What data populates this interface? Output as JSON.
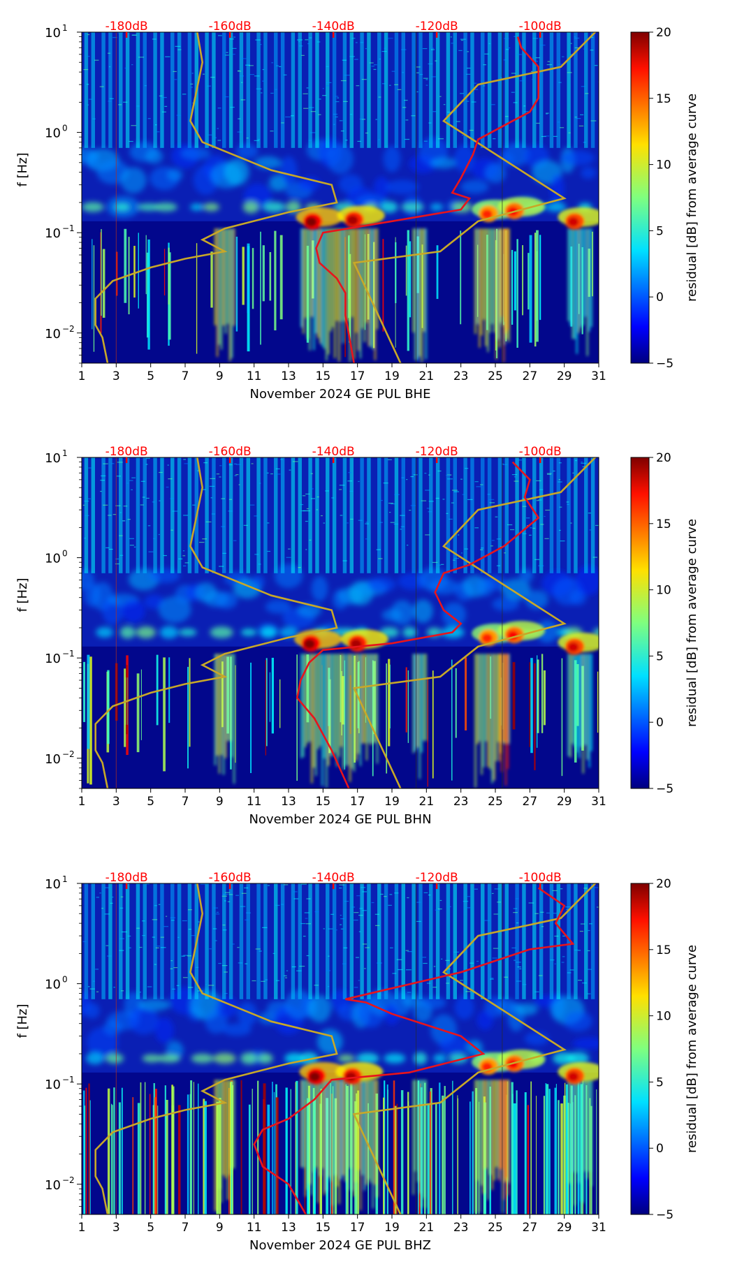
{
  "colors": {
    "red_curve": "#e8141c",
    "gold_curve": "#c8a828",
    "db_label": "#ff0000",
    "background_field": "#0a1fb4"
  },
  "colorbar": {
    "label": "residual [dB] from average curve",
    "min": -5,
    "max": 20,
    "ticks": [
      20,
      15,
      10,
      5,
      0,
      -5
    ],
    "colormap": "jet"
  },
  "chart_data": [
    {
      "type": "heatmap",
      "xlabel": "November 2024 GE PUL  BHE",
      "ylabel": "f [Hz]",
      "x_ticks": [
        "1",
        "3",
        "5",
        "7",
        "9",
        "11",
        "13",
        "15",
        "17",
        "19",
        "21",
        "23",
        "25",
        "27",
        "29",
        "31"
      ],
      "xlim": [
        1,
        31
      ],
      "ylim": [
        0.005,
        10
      ],
      "yscale": "log",
      "y_ticks": [
        {
          "base": "10",
          "exp": "1"
        },
        {
          "base": "10",
          "exp": "0"
        },
        {
          "base": "10",
          "exp": "−1"
        },
        {
          "base": "10",
          "exp": "−2"
        }
      ],
      "db_labels": [
        "-180dB",
        "-160dB",
        "-140dB",
        "-120dB",
        "-100dB"
      ],
      "gold_curve": [
        [
          2.5,
          0.005
        ],
        [
          2.2,
          0.009
        ],
        [
          1.8,
          0.012
        ],
        [
          1.8,
          0.022
        ],
        [
          2.8,
          0.033
        ],
        [
          5,
          0.045
        ],
        [
          7,
          0.055
        ],
        [
          9.3,
          0.065
        ],
        [
          8,
          0.085
        ],
        [
          9.3,
          0.11
        ],
        [
          13,
          0.16
        ],
        [
          15.8,
          0.2
        ],
        [
          15.5,
          0.3
        ],
        [
          12,
          0.42
        ],
        [
          8,
          0.8
        ],
        [
          7.3,
          1.3
        ],
        [
          8,
          5
        ],
        [
          7.7,
          10
        ]
      ],
      "gold_curve_2": [
        [
          19.5,
          0.005
        ],
        [
          16.8,
          0.05
        ],
        [
          21.8,
          0.065
        ],
        [
          24,
          0.13
        ],
        [
          29,
          0.22
        ],
        [
          22,
          1.3
        ],
        [
          24,
          3
        ],
        [
          28.8,
          4.5
        ],
        [
          30.8,
          10
        ]
      ],
      "red_curve": [
        [
          16.8,
          0.005
        ],
        [
          16.3,
          0.015
        ],
        [
          16.3,
          0.025
        ],
        [
          15.8,
          0.035
        ],
        [
          14.8,
          0.05
        ],
        [
          14.6,
          0.07
        ],
        [
          15,
          0.1
        ],
        [
          19,
          0.13
        ],
        [
          23,
          0.17
        ],
        [
          23.5,
          0.22
        ],
        [
          22.5,
          0.25
        ],
        [
          23,
          0.35
        ],
        [
          23.7,
          0.6
        ],
        [
          24,
          0.85
        ],
        [
          26,
          1.3
        ],
        [
          27,
          1.6
        ],
        [
          27.5,
          2.2
        ],
        [
          27.5,
          3
        ],
        [
          27.5,
          4.5
        ],
        [
          26.5,
          7
        ],
        [
          26.3,
          9
        ]
      ],
      "events": [
        {
          "day": 14.4,
          "freq": 0.13,
          "level": 20
        },
        {
          "day": 16.8,
          "freq": 0.135,
          "level": 19
        },
        {
          "day": 24.6,
          "freq": 0.155,
          "level": 16
        },
        {
          "day": 26.1,
          "freq": 0.165,
          "level": 17
        },
        {
          "day": 29.6,
          "freq": 0.13,
          "level": 18
        }
      ]
    },
    {
      "type": "heatmap",
      "xlabel": "November 2024 GE PUL  BHN",
      "ylabel": "f [Hz]",
      "x_ticks": [
        "1",
        "3",
        "5",
        "7",
        "9",
        "11",
        "13",
        "15",
        "17",
        "19",
        "21",
        "23",
        "25",
        "27",
        "29",
        "31"
      ],
      "xlim": [
        1,
        31
      ],
      "ylim": [
        0.005,
        10
      ],
      "yscale": "log",
      "y_ticks": [
        {
          "base": "10",
          "exp": "1"
        },
        {
          "base": "10",
          "exp": "0"
        },
        {
          "base": "10",
          "exp": "−1"
        },
        {
          "base": "10",
          "exp": "−2"
        }
      ],
      "db_labels": [
        "-180dB",
        "-160dB",
        "-140dB",
        "-120dB",
        "-100dB"
      ],
      "gold_curve": [
        [
          2.5,
          0.005
        ],
        [
          2.2,
          0.009
        ],
        [
          1.8,
          0.012
        ],
        [
          1.8,
          0.022
        ],
        [
          2.8,
          0.033
        ],
        [
          5,
          0.045
        ],
        [
          7,
          0.055
        ],
        [
          9.3,
          0.065
        ],
        [
          8,
          0.085
        ],
        [
          9.3,
          0.11
        ],
        [
          13,
          0.16
        ],
        [
          15.8,
          0.2
        ],
        [
          15.5,
          0.3
        ],
        [
          12,
          0.42
        ],
        [
          8,
          0.8
        ],
        [
          7.3,
          1.3
        ],
        [
          8,
          5
        ],
        [
          7.7,
          10
        ]
      ],
      "gold_curve_2": [
        [
          19.5,
          0.005
        ],
        [
          16.8,
          0.05
        ],
        [
          21.8,
          0.065
        ],
        [
          24,
          0.13
        ],
        [
          29,
          0.22
        ],
        [
          22,
          1.3
        ],
        [
          24,
          3
        ],
        [
          28.8,
          4.5
        ],
        [
          30.8,
          10
        ]
      ],
      "red_curve": [
        [
          16.5,
          0.005
        ],
        [
          15.5,
          0.012
        ],
        [
          14.5,
          0.025
        ],
        [
          13.5,
          0.04
        ],
        [
          13.7,
          0.06
        ],
        [
          14.2,
          0.09
        ],
        [
          15,
          0.12
        ],
        [
          19,
          0.14
        ],
        [
          22.5,
          0.18
        ],
        [
          23,
          0.22
        ],
        [
          22,
          0.3
        ],
        [
          21.5,
          0.45
        ],
        [
          22,
          0.7
        ],
        [
          23.5,
          0.85
        ],
        [
          25.5,
          1.3
        ],
        [
          26.5,
          1.8
        ],
        [
          27.5,
          2.5
        ],
        [
          26.7,
          4
        ],
        [
          27,
          6
        ],
        [
          26,
          9
        ]
      ],
      "events": [
        {
          "day": 14.3,
          "freq": 0.14,
          "level": 20
        },
        {
          "day": 17,
          "freq": 0.14,
          "level": 19
        },
        {
          "day": 24.6,
          "freq": 0.16,
          "level": 16
        },
        {
          "day": 26.1,
          "freq": 0.17,
          "level": 17
        },
        {
          "day": 29.6,
          "freq": 0.13,
          "level": 18
        }
      ]
    },
    {
      "type": "heatmap",
      "xlabel": "November 2024 GE PUL  BHZ",
      "ylabel": "f [Hz]",
      "x_ticks": [
        "1",
        "3",
        "5",
        "7",
        "9",
        "11",
        "13",
        "15",
        "17",
        "19",
        "21",
        "23",
        "25",
        "27",
        "29",
        "31"
      ],
      "xlim": [
        1,
        31
      ],
      "ylim": [
        0.005,
        10
      ],
      "yscale": "log",
      "y_ticks": [
        {
          "base": "10",
          "exp": "1"
        },
        {
          "base": "10",
          "exp": "0"
        },
        {
          "base": "10",
          "exp": "−1"
        },
        {
          "base": "10",
          "exp": "−2"
        }
      ],
      "db_labels": [
        "-180dB",
        "-160dB",
        "-140dB",
        "-120dB",
        "-100dB"
      ],
      "gold_curve": [
        [
          2.5,
          0.005
        ],
        [
          2.2,
          0.009
        ],
        [
          1.8,
          0.012
        ],
        [
          1.8,
          0.022
        ],
        [
          2.8,
          0.033
        ],
        [
          5,
          0.045
        ],
        [
          7,
          0.055
        ],
        [
          9.3,
          0.065
        ],
        [
          8,
          0.085
        ],
        [
          9.3,
          0.11
        ],
        [
          13,
          0.16
        ],
        [
          15.8,
          0.2
        ],
        [
          15.5,
          0.3
        ],
        [
          12,
          0.42
        ],
        [
          8,
          0.8
        ],
        [
          7.3,
          1.3
        ],
        [
          8,
          5
        ],
        [
          7.7,
          10
        ]
      ],
      "gold_curve_2": [
        [
          19.5,
          0.005
        ],
        [
          16.8,
          0.05
        ],
        [
          21.8,
          0.065
        ],
        [
          24,
          0.13
        ],
        [
          29,
          0.22
        ],
        [
          22,
          1.3
        ],
        [
          24,
          3
        ],
        [
          28.8,
          4.5
        ],
        [
          30.8,
          10
        ]
      ],
      "red_curve": [
        [
          14,
          0.005
        ],
        [
          13,
          0.01
        ],
        [
          11.5,
          0.015
        ],
        [
          11,
          0.025
        ],
        [
          11.5,
          0.035
        ],
        [
          13,
          0.045
        ],
        [
          14.5,
          0.07
        ],
        [
          15.5,
          0.11
        ],
        [
          20,
          0.13
        ],
        [
          24.3,
          0.2
        ],
        [
          23,
          0.3
        ],
        [
          19,
          0.5
        ],
        [
          17.5,
          0.65
        ],
        [
          16.3,
          0.7
        ],
        [
          19,
          0.9
        ],
        [
          23,
          1.3
        ],
        [
          27,
          2.2
        ],
        [
          29.5,
          2.5
        ],
        [
          28.5,
          4
        ],
        [
          29,
          6
        ],
        [
          27.5,
          9
        ]
      ],
      "events": [
        {
          "day": 14.6,
          "freq": 0.12,
          "level": 20
        },
        {
          "day": 16.7,
          "freq": 0.12,
          "level": 19
        },
        {
          "day": 24.6,
          "freq": 0.15,
          "level": 16
        },
        {
          "day": 26.1,
          "freq": 0.16,
          "level": 17
        },
        {
          "day": 29.6,
          "freq": 0.12,
          "level": 18
        }
      ]
    }
  ]
}
